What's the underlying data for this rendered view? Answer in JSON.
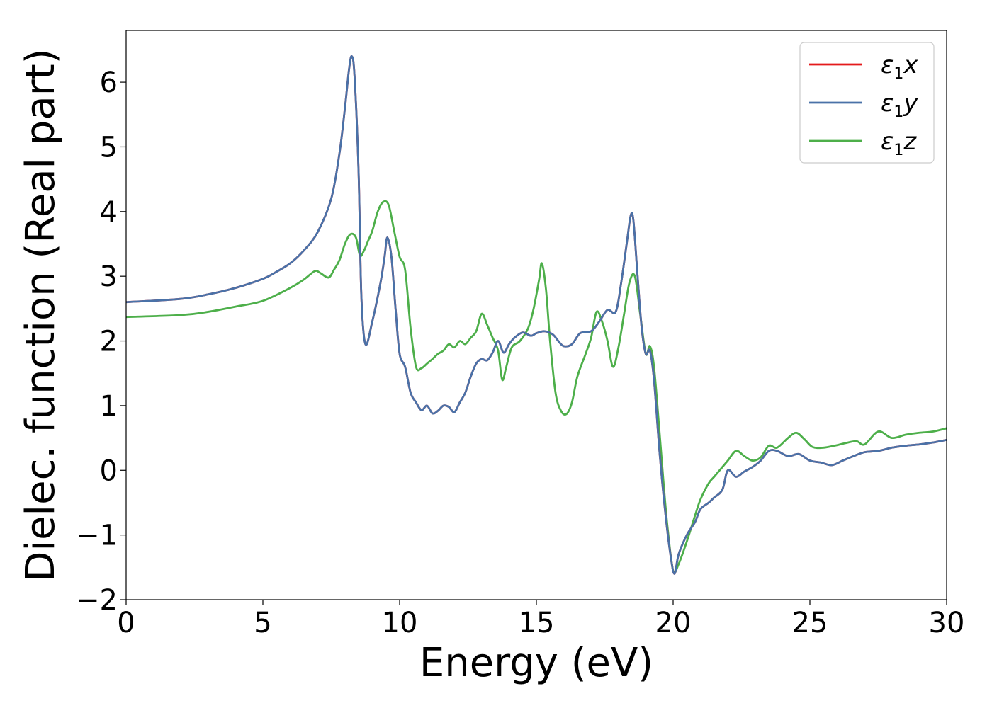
{
  "chart_data": {
    "type": "line",
    "title": "",
    "xlabel": "Energy (eV)",
    "ylabel": "Dielec. function (Real part)",
    "xlim": [
      0,
      30
    ],
    "ylim": [
      -2,
      6.8
    ],
    "xticks": [
      0,
      5,
      10,
      15,
      20,
      25,
      30
    ],
    "xtick_labels": [
      "0",
      "5",
      "10",
      "15",
      "20",
      "25",
      "30"
    ],
    "yticks": [
      -2,
      -1,
      0,
      1,
      2,
      3,
      4,
      5,
      6
    ],
    "ytick_labels": [
      "−2",
      "−1",
      "0",
      "1",
      "2",
      "3",
      "4",
      "5",
      "6"
    ],
    "grid": false,
    "legend": {
      "placement": "top-right"
    },
    "series": [
      {
        "name": "ε",
        "subscript": "1",
        "suffix": "x",
        "color": "#e41a1c",
        "x": [
          0,
          2,
          3,
          4,
          5,
          5.5,
          6,
          6.5,
          7,
          7.5,
          7.8,
          8.0,
          8.15,
          8.25,
          8.35,
          8.5,
          8.6,
          8.75,
          9.0,
          9.3,
          9.45,
          9.55,
          9.7,
          9.85,
          10.0,
          10.2,
          10.4,
          10.6,
          10.8,
          11.0,
          11.2,
          11.4,
          11.6,
          11.8,
          12.0,
          12.2,
          12.4,
          12.6,
          12.8,
          13.0,
          13.2,
          13.4,
          13.6,
          13.8,
          14.0,
          14.2,
          14.5,
          14.8,
          15.0,
          15.3,
          15.6,
          15.8,
          16.0,
          16.3,
          16.6,
          17.0,
          17.3,
          17.6,
          17.9,
          18.1,
          18.3,
          18.45,
          18.55,
          18.7,
          18.85,
          19.0,
          19.15,
          19.3,
          19.5,
          19.7,
          19.9,
          20.05,
          20.2,
          20.5,
          20.8,
          21.0,
          21.3,
          21.5,
          21.8,
          22.0,
          22.3,
          22.6,
          22.9,
          23.2,
          23.5,
          23.8,
          24.2,
          24.6,
          25.0,
          25.4,
          25.8,
          26.2,
          26.6,
          27.0,
          27.5,
          28.0,
          28.5,
          29.0,
          29.5,
          30.0
        ],
        "y": [
          2.6,
          2.65,
          2.72,
          2.82,
          2.96,
          3.07,
          3.2,
          3.4,
          3.68,
          4.2,
          4.9,
          5.6,
          6.2,
          6.4,
          6.1,
          4.6,
          2.7,
          1.95,
          2.3,
          2.9,
          3.3,
          3.6,
          3.3,
          2.5,
          1.8,
          1.6,
          1.2,
          1.05,
          0.93,
          1.0,
          0.88,
          0.92,
          1.0,
          0.98,
          0.9,
          1.05,
          1.2,
          1.45,
          1.65,
          1.72,
          1.7,
          1.82,
          2.0,
          1.82,
          1.95,
          2.05,
          2.13,
          2.08,
          2.12,
          2.15,
          2.1,
          2.0,
          1.92,
          1.95,
          2.12,
          2.15,
          2.3,
          2.48,
          2.45,
          2.9,
          3.5,
          3.94,
          3.85,
          3.0,
          2.2,
          1.8,
          1.85,
          1.4,
          0.3,
          -0.6,
          -1.3,
          -1.6,
          -1.3,
          -1.0,
          -0.8,
          -0.6,
          -0.5,
          -0.42,
          -0.3,
          0.0,
          -0.1,
          -0.02,
          0.05,
          0.15,
          0.3,
          0.3,
          0.22,
          0.25,
          0.15,
          0.12,
          0.08,
          0.15,
          0.22,
          0.28,
          0.3,
          0.35,
          0.38,
          0.4,
          0.43,
          0.47
        ]
      },
      {
        "name": "ε",
        "subscript": "1",
        "suffix": "y",
        "color": "#4a72a8",
        "x": [
          0,
          2,
          3,
          4,
          5,
          5.5,
          6,
          6.5,
          7,
          7.5,
          7.8,
          8.0,
          8.15,
          8.25,
          8.35,
          8.5,
          8.6,
          8.75,
          9.0,
          9.3,
          9.45,
          9.55,
          9.7,
          9.85,
          10.0,
          10.2,
          10.4,
          10.6,
          10.8,
          11.0,
          11.2,
          11.4,
          11.6,
          11.8,
          12.0,
          12.2,
          12.4,
          12.6,
          12.8,
          13.0,
          13.2,
          13.4,
          13.6,
          13.8,
          14.0,
          14.2,
          14.5,
          14.8,
          15.0,
          15.3,
          15.6,
          15.8,
          16.0,
          16.3,
          16.6,
          17.0,
          17.3,
          17.6,
          17.9,
          18.1,
          18.3,
          18.45,
          18.55,
          18.7,
          18.85,
          19.0,
          19.15,
          19.3,
          19.5,
          19.7,
          19.9,
          20.05,
          20.2,
          20.5,
          20.8,
          21.0,
          21.3,
          21.5,
          21.8,
          22.0,
          22.3,
          22.6,
          22.9,
          23.2,
          23.5,
          23.8,
          24.2,
          24.6,
          25.0,
          25.4,
          25.8,
          26.2,
          26.6,
          27.0,
          27.5,
          28.0,
          28.5,
          29.0,
          29.5,
          30.0
        ],
        "y": [
          2.6,
          2.65,
          2.72,
          2.82,
          2.96,
          3.07,
          3.2,
          3.4,
          3.68,
          4.2,
          4.9,
          5.6,
          6.2,
          6.4,
          6.1,
          4.6,
          2.7,
          1.95,
          2.3,
          2.9,
          3.3,
          3.6,
          3.3,
          2.5,
          1.8,
          1.6,
          1.2,
          1.05,
          0.93,
          1.0,
          0.88,
          0.92,
          1.0,
          0.98,
          0.9,
          1.05,
          1.2,
          1.45,
          1.65,
          1.72,
          1.7,
          1.82,
          2.0,
          1.82,
          1.95,
          2.05,
          2.13,
          2.08,
          2.12,
          2.15,
          2.1,
          2.0,
          1.92,
          1.95,
          2.12,
          2.15,
          2.3,
          2.48,
          2.45,
          2.9,
          3.5,
          3.94,
          3.85,
          3.0,
          2.2,
          1.8,
          1.85,
          1.4,
          0.3,
          -0.6,
          -1.3,
          -1.6,
          -1.3,
          -1.0,
          -0.8,
          -0.6,
          -0.5,
          -0.42,
          -0.3,
          0.0,
          -0.1,
          -0.02,
          0.05,
          0.15,
          0.3,
          0.3,
          0.22,
          0.25,
          0.15,
          0.12,
          0.08,
          0.15,
          0.22,
          0.28,
          0.3,
          0.35,
          0.38,
          0.4,
          0.43,
          0.47
        ]
      },
      {
        "name": "ε",
        "subscript": "1",
        "suffix": "z",
        "color": "#4daf4a",
        "x": [
          0,
          2,
          3,
          4,
          5,
          6,
          6.5,
          6.9,
          7.1,
          7.4,
          7.6,
          7.8,
          8.0,
          8.2,
          8.4,
          8.55,
          8.7,
          8.85,
          9.0,
          9.2,
          9.4,
          9.6,
          9.8,
          10.0,
          10.2,
          10.4,
          10.6,
          10.8,
          11.0,
          11.2,
          11.4,
          11.6,
          11.8,
          12.0,
          12.2,
          12.4,
          12.6,
          12.8,
          13.0,
          13.2,
          13.4,
          13.6,
          13.75,
          13.9,
          14.1,
          14.4,
          14.7,
          14.9,
          15.1,
          15.2,
          15.35,
          15.5,
          15.7,
          15.9,
          16.1,
          16.3,
          16.5,
          16.8,
          17.0,
          17.2,
          17.4,
          17.6,
          17.8,
          18.0,
          18.2,
          18.4,
          18.6,
          18.8,
          19.0,
          19.15,
          19.3,
          19.5,
          19.65,
          19.8,
          20.0,
          20.2,
          20.5,
          20.8,
          21.0,
          21.3,
          21.5,
          21.8,
          22.0,
          22.3,
          22.6,
          22.9,
          23.2,
          23.5,
          23.8,
          24.2,
          24.5,
          24.8,
          25.1,
          25.5,
          25.9,
          26.3,
          26.7,
          27.0,
          27.5,
          28.0,
          28.5,
          29.0,
          29.5,
          30.0
        ],
        "y": [
          2.37,
          2.4,
          2.45,
          2.53,
          2.62,
          2.82,
          2.95,
          3.08,
          3.05,
          2.98,
          3.1,
          3.25,
          3.5,
          3.65,
          3.6,
          3.32,
          3.4,
          3.55,
          3.7,
          4.0,
          4.15,
          4.1,
          3.7,
          3.3,
          3.1,
          2.2,
          1.6,
          1.58,
          1.65,
          1.72,
          1.8,
          1.85,
          1.95,
          1.9,
          2.0,
          1.95,
          2.05,
          2.15,
          2.42,
          2.25,
          2.05,
          1.85,
          1.4,
          1.6,
          1.9,
          2.0,
          2.2,
          2.5,
          2.95,
          3.2,
          2.8,
          2.0,
          1.2,
          0.92,
          0.87,
          1.05,
          1.45,
          1.8,
          2.05,
          2.45,
          2.3,
          2.0,
          1.6,
          1.9,
          2.4,
          2.9,
          3.0,
          2.4,
          1.8,
          1.92,
          1.6,
          0.6,
          -0.2,
          -0.9,
          -1.55,
          -1.45,
          -1.1,
          -0.7,
          -0.45,
          -0.2,
          -0.1,
          0.05,
          0.15,
          0.3,
          0.22,
          0.15,
          0.2,
          0.38,
          0.35,
          0.5,
          0.58,
          0.48,
          0.36,
          0.35,
          0.38,
          0.42,
          0.45,
          0.4,
          0.6,
          0.5,
          0.55,
          0.58,
          0.6,
          0.65
        ]
      }
    ]
  }
}
